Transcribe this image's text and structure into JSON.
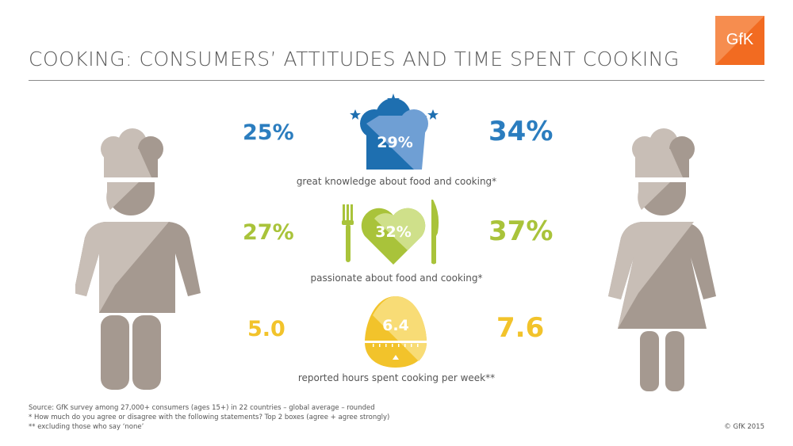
{
  "header": {
    "title": "COOKING: CONSUMERS’ ATTITUDES AND TIME SPENT COOKING",
    "logo": "GfK",
    "logo_color": "#f26b21"
  },
  "rows": [
    {
      "left": "25%",
      "center": "29%",
      "right": "34%",
      "caption": "great knowledge about food and cooking*",
      "icon": "chef-hat-icon",
      "color": "#2b7dbf"
    },
    {
      "left": "27%",
      "center": "32%",
      "right": "37%",
      "caption": "passionate about food and cooking*",
      "icon": "heart-fork-knife-icon",
      "color": "#a9c33a"
    },
    {
      "left": "5.0",
      "center": "6.4",
      "right": "7.6",
      "caption": "reported hours spent cooking per week**",
      "icon": "egg-timer-icon",
      "color": "#f2c32b"
    }
  ],
  "figures": {
    "left": "male-chef-icon",
    "right": "female-chef-icon"
  },
  "footer": {
    "source": "Source: GfK survey among 27,000+ consumers (ages 15+) in 22 countries – global average – rounded",
    "note1": "*   How much do you agree or disagree with the following statements? Top 2 boxes (agree + agree strongly)",
    "note2": "**  excluding those who say ‘none’",
    "copyright": "© GfK 2015"
  }
}
